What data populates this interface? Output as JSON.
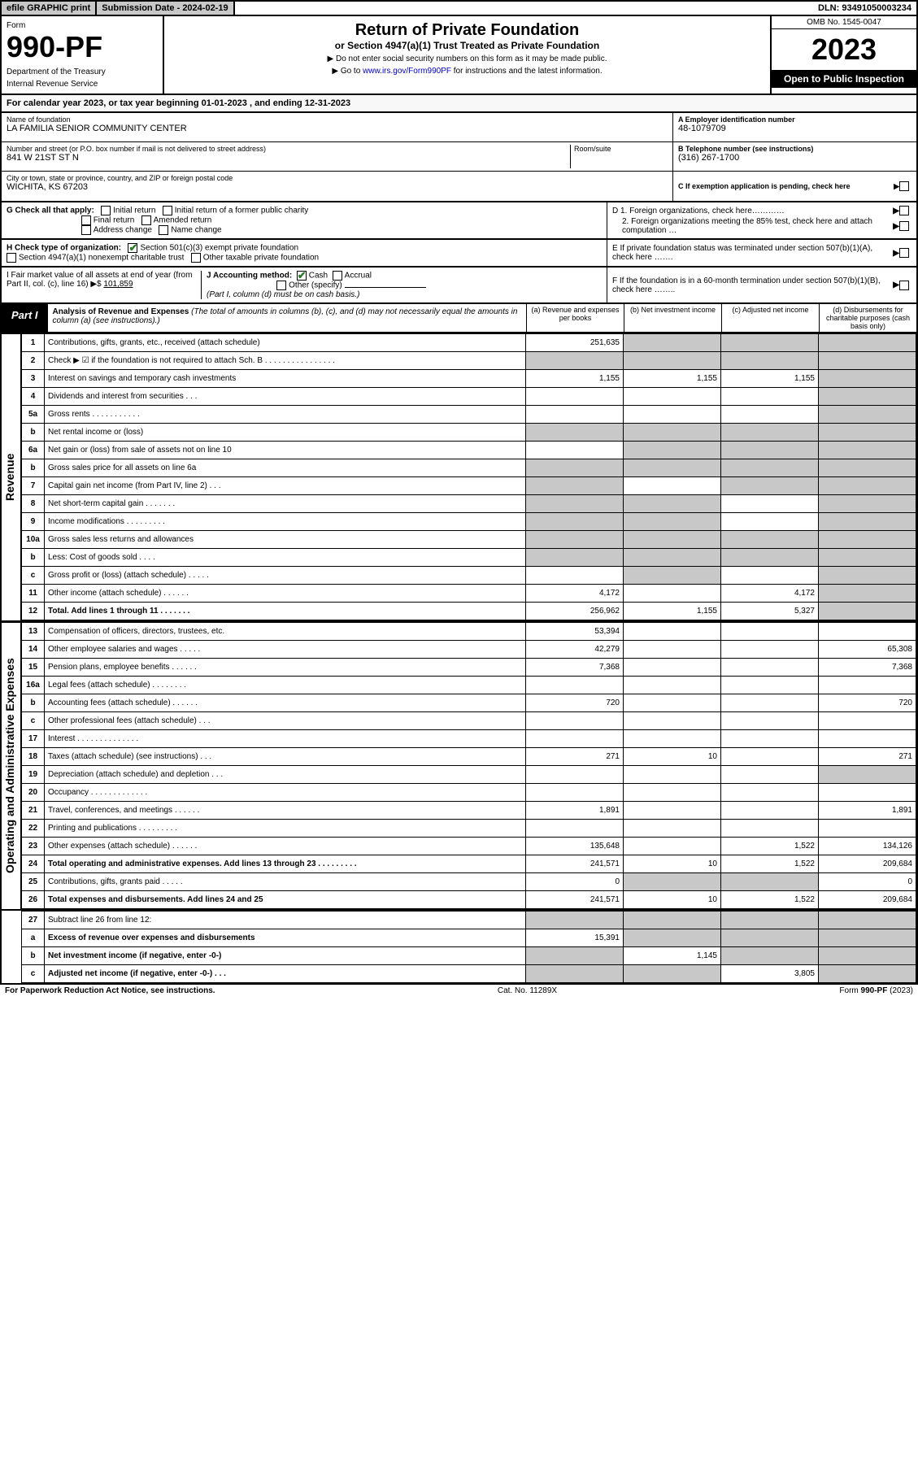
{
  "top": {
    "efile": "efile GRAPHIC print",
    "submission": "Submission Date - 2024-02-19",
    "dln": "DLN: 93491050003234"
  },
  "header": {
    "form_label": "Form",
    "form_num": "990-PF",
    "dept1": "Department of the Treasury",
    "dept2": "Internal Revenue Service",
    "title": "Return of Private Foundation",
    "subtitle": "or Section 4947(a)(1) Trust Treated as Private Foundation",
    "note1": "▶ Do not enter social security numbers on this form as it may be made public.",
    "note2_pre": "▶ Go to ",
    "note2_link": "www.irs.gov/Form990PF",
    "note2_post": " for instructions and the latest information.",
    "omb": "OMB No. 1545-0047",
    "year": "2023",
    "open": "Open to Public Inspection"
  },
  "cal": "For calendar year 2023, or tax year beginning 01-01-2023                           , and ending 12-31-2023",
  "nb": {
    "name_lbl": "Name of foundation",
    "name_val": "LA FAMILIA SENIOR COMMUNITY CENTER",
    "addr_lbl": "Number and street (or P.O. box number if mail is not delivered to street address)",
    "addr_val": "841 W 21ST ST N",
    "room_lbl": "Room/suite",
    "city_lbl": "City or town, state or province, country, and ZIP or foreign postal code",
    "city_val": "WICHITA, KS  67203",
    "a_lbl": "A Employer identification number",
    "a_val": "48-1079709",
    "b_lbl": "B Telephone number (see instructions)",
    "b_val": "(316) 267-1700",
    "c_lbl": "C If exemption application is pending, check here"
  },
  "g": {
    "lbl": "G Check all that apply:",
    "o1": "Initial return",
    "o2": "Initial return of a former public charity",
    "o3": "Final return",
    "o4": "Amended return",
    "o5": "Address change",
    "o6": "Name change"
  },
  "d": {
    "d1": "D 1. Foreign organizations, check here…………",
    "d2": "2. Foreign organizations meeting the 85% test, check here and attach computation …"
  },
  "h": {
    "lbl": "H Check type of organization:",
    "o1": "Section 501(c)(3) exempt private foundation",
    "o2": "Section 4947(a)(1) nonexempt charitable trust",
    "o3": "Other taxable private foundation"
  },
  "e": "E  If private foundation status was terminated under section 507(b)(1)(A), check here …….",
  "i": {
    "lbl": "I Fair market value of all assets at end of year (from Part II, col. (c), line 16) ▶$  ",
    "val": "101,859"
  },
  "j": {
    "lbl": "J Accounting method:",
    "o1": "Cash",
    "o2": "Accrual",
    "o3": "Other (specify)",
    "note": "(Part I, column (d) must be on cash basis.)"
  },
  "f": "F  If the foundation is in a 60-month termination under section 507(b)(1)(B), check here ……..",
  "part1": {
    "badge": "Part I",
    "title": "Analysis of Revenue and Expenses ",
    "sub": "(The total of amounts in columns (b), (c), and (d) may not necessarily equal the amounts in column (a) (see instructions).)",
    "ca": "(a)   Revenue and expenses per books",
    "cb": "(b)   Net investment income",
    "cc": "(c)   Adjusted net income",
    "cd": "(d)   Disbursements for charitable purposes (cash basis only)"
  },
  "side": {
    "rev": "Revenue",
    "exp": "Operating and Administrative Expenses"
  },
  "rows": [
    {
      "n": "1",
      "d": "Contributions, gifts, grants, etc., received (attach schedule)",
      "a": "251,635",
      "b_sh": true,
      "c_sh": true,
      "d_sh": true
    },
    {
      "n": "2",
      "d": "Check ▶ ☑ if the foundation is not required to attach Sch. B     .   .   .   .   .   .   .   .   .   .   .   .   .   .   .   .",
      "a_sh": true,
      "b_sh": true,
      "c_sh": true,
      "d_sh": true
    },
    {
      "n": "3",
      "d": "Interest on savings and temporary cash investments",
      "a": "1,155",
      "b": "1,155",
      "c": "1,155",
      "d_sh": true
    },
    {
      "n": "4",
      "d": "Dividends and interest from securities     .   .   .",
      "d_sh": true
    },
    {
      "n": "5a",
      "d": "Gross rents     .   .   .   .   .   .   .   .   .   .   .",
      "d_sh": true
    },
    {
      "n": "b",
      "d": "Net rental income or (loss)  ",
      "a_sh": true,
      "b_sh": true,
      "c_sh": true,
      "d_sh": true
    },
    {
      "n": "6a",
      "d": "Net gain or (loss) from sale of assets not on line 10",
      "b_sh": true,
      "c_sh": true,
      "d_sh": true
    },
    {
      "n": "b",
      "d": "Gross sales price for all assets on line 6a",
      "a_sh": true,
      "b_sh": true,
      "c_sh": true,
      "d_sh": true
    },
    {
      "n": "7",
      "d": "Capital gain net income (from Part IV, line 2)    .   .   .",
      "a_sh": true,
      "c_sh": true,
      "d_sh": true
    },
    {
      "n": "8",
      "d": "Net short-term capital gain   .   .   .   .   .   .   .",
      "a_sh": true,
      "b_sh": true,
      "d_sh": true
    },
    {
      "n": "9",
      "d": "Income modifications  .   .   .   .   .   .   .   .   .",
      "a_sh": true,
      "b_sh": true,
      "d_sh": true
    },
    {
      "n": "10a",
      "d": "Gross sales less returns and allowances",
      "a_sh": true,
      "b_sh": true,
      "c_sh": true,
      "d_sh": true
    },
    {
      "n": "b",
      "d": "Less: Cost of goods sold     .   .   .   .",
      "a_sh": true,
      "b_sh": true,
      "c_sh": true,
      "d_sh": true
    },
    {
      "n": "c",
      "d": "Gross profit or (loss) (attach schedule)    .   .   .   .   .",
      "b_sh": true,
      "d_sh": true
    },
    {
      "n": "11",
      "d": "Other income (attach schedule)    .   .   .   .   .   .",
      "a": "4,172",
      "c": "4,172",
      "d_sh": true
    },
    {
      "n": "12",
      "d": "Total. Add lines 1 through 11   .   .   .   .   .   .   .",
      "a": "256,962",
      "b": "1,155",
      "c": "5,327",
      "d_sh": true,
      "bold": true
    }
  ],
  "erows": [
    {
      "n": "13",
      "d": "Compensation of officers, directors, trustees, etc.",
      "a": "53,394"
    },
    {
      "n": "14",
      "d": "Other employee salaries and wages    .   .   .   .   .",
      "a": "42,279",
      "dd": "65,308"
    },
    {
      "n": "15",
      "d": "Pension plans, employee benefits  .   .   .   .   .   .",
      "a": "7,368",
      "dd": "7,368"
    },
    {
      "n": "16a",
      "d": "Legal fees (attach schedule)  .   .   .   .   .   .   .   ."
    },
    {
      "n": "b",
      "d": "Accounting fees (attach schedule)  .   .   .   .   .   .",
      "a": "720",
      "dd": "720"
    },
    {
      "n": "c",
      "d": "Other professional fees (attach schedule)    .   .   ."
    },
    {
      "n": "17",
      "d": "Interest .   .   .   .   .   .   .   .   .   .   .   .   .   ."
    },
    {
      "n": "18",
      "d": "Taxes (attach schedule) (see instructions)     .   .   .",
      "a": "271",
      "b": "10",
      "dd": "271"
    },
    {
      "n": "19",
      "d": "Depreciation (attach schedule) and depletion    .   .   .",
      "d_sh": true
    },
    {
      "n": "20",
      "d": "Occupancy .   .   .   .   .   .   .   .   .   .   .   .   ."
    },
    {
      "n": "21",
      "d": "Travel, conferences, and meetings  .   .   .   .   .   .",
      "a": "1,891",
      "dd": "1,891"
    },
    {
      "n": "22",
      "d": "Printing and publications  .   .   .   .   .   .   .   .   ."
    },
    {
      "n": "23",
      "d": "Other expenses (attach schedule)  .   .   .   .   .   .",
      "a": "135,648",
      "c": "1,522",
      "dd": "134,126"
    },
    {
      "n": "24",
      "d": "Total operating and administrative expenses. Add lines 13 through 23   .   .   .   .   .   .   .   .   .",
      "a": "241,571",
      "b": "10",
      "c": "1,522",
      "dd": "209,684",
      "bold": true
    },
    {
      "n": "25",
      "d": "Contributions, gifts, grants paid     .   .   .   .   .",
      "a": "0",
      "b_sh": true,
      "c_sh": true,
      "dd": "0"
    },
    {
      "n": "26",
      "d": "Total expenses and disbursements. Add lines 24 and 25",
      "a": "241,571",
      "b": "10",
      "c": "1,522",
      "dd": "209,684",
      "bold": true
    }
  ],
  "brows": [
    {
      "n": "27",
      "d": "Subtract line 26 from line 12:",
      "a_sh": true,
      "b_sh": true,
      "c_sh": true,
      "d_sh": true
    },
    {
      "n": "a",
      "d": "Excess of revenue over expenses and disbursements",
      "a": "15,391",
      "b_sh": true,
      "c_sh": true,
      "d_sh": true,
      "bold": true
    },
    {
      "n": "b",
      "d": "Net investment income (if negative, enter -0-)",
      "a_sh": true,
      "b": "1,145",
      "c_sh": true,
      "d_sh": true,
      "bold": true
    },
    {
      "n": "c",
      "d": "Adjusted net income (if negative, enter -0-)   .   .   .",
      "a_sh": true,
      "b_sh": true,
      "c": "3,805",
      "d_sh": true,
      "bold": true
    }
  ],
  "footer": {
    "left": "For Paperwork Reduction Act Notice, see instructions.",
    "mid": "Cat. No. 11289X",
    "right": "Form 990-PF (2023)"
  }
}
